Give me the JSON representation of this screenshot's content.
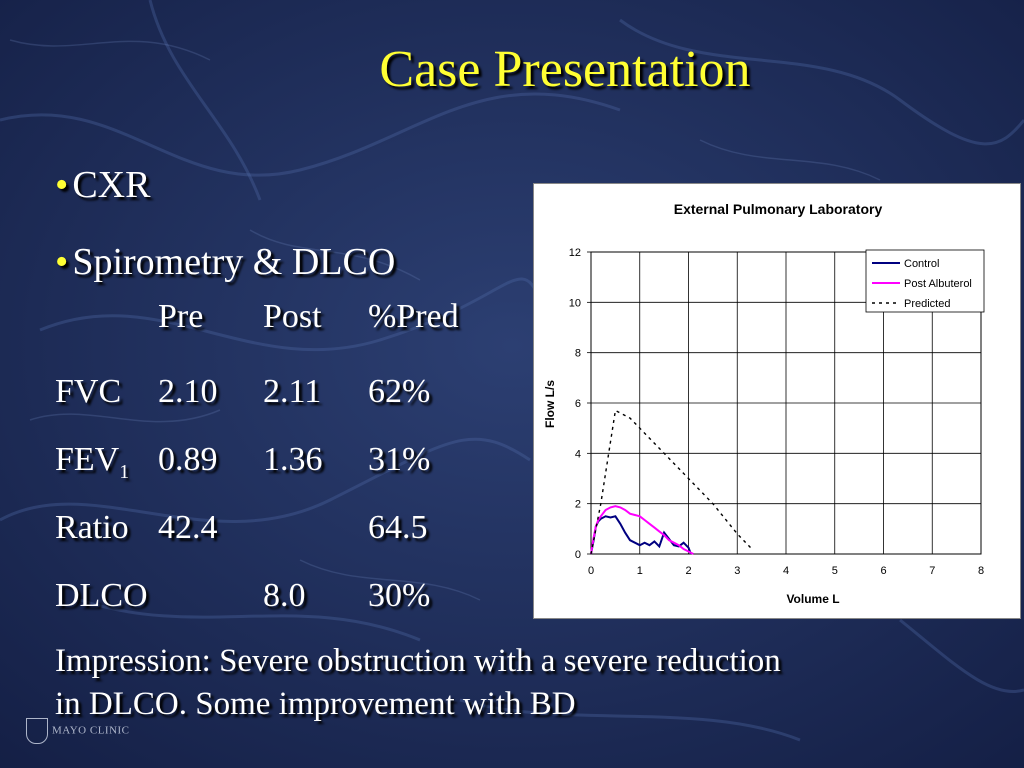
{
  "slide": {
    "title": "Case Presentation",
    "bullets": [
      "CXR",
      "Spirometry & DLCO"
    ],
    "table": {
      "headers": [
        "Pre",
        "Post",
        "%Pred"
      ],
      "rows": [
        {
          "label": "FVC",
          "sub": "",
          "pre": "2.10",
          "post": "2.11",
          "pred": "62%"
        },
        {
          "label": "FEV",
          "sub": "1",
          "pre": "0.89",
          "post": "1.36",
          "pred": "31%"
        },
        {
          "label": "Ratio",
          "sub": "",
          "pre": "42.4",
          "post": "",
          "pred": "64.5"
        },
        {
          "label": "DLCO",
          "sub": "",
          "pre": "",
          "post": "8.0",
          "pred": "30%"
        }
      ]
    },
    "impression_line1": "Impression: Severe obstruction with a severe reduction",
    "impression_line2": "in DLCO.  Some improvement with BD",
    "logo_text": "MAYO CLINIC",
    "colors": {
      "title": "#ffff33",
      "text": "#ffffff",
      "background": "#1b2a55"
    }
  },
  "chart_data": {
    "type": "line",
    "title": "External Pulmonary Laboratory",
    "xlabel": "Volume L",
    "ylabel": "Flow L/s",
    "xlim": [
      0,
      8
    ],
    "ylim": [
      0,
      12
    ],
    "xticks": [
      0,
      1,
      2,
      3,
      4,
      5,
      6,
      7,
      8
    ],
    "yticks": [
      0,
      2,
      4,
      6,
      8,
      10,
      12
    ],
    "grid": true,
    "legend_position": "top-right",
    "series": [
      {
        "name": "Control",
        "color": "#000080",
        "dash": "solid",
        "x": [
          0,
          0.05,
          0.1,
          0.15,
          0.2,
          0.3,
          0.4,
          0.5,
          0.6,
          0.7,
          0.8,
          0.9,
          1.0,
          1.1,
          1.2,
          1.3,
          1.4,
          1.5,
          1.6,
          1.7,
          1.8,
          1.9,
          2.0,
          2.05
        ],
        "y": [
          0,
          0.5,
          1.1,
          1.3,
          1.4,
          1.5,
          1.45,
          1.5,
          1.2,
          0.85,
          0.55,
          0.45,
          0.35,
          0.45,
          0.35,
          0.5,
          0.3,
          0.85,
          0.6,
          0.35,
          0.3,
          0.45,
          0.25,
          0
        ]
      },
      {
        "name": "Post Albuterol",
        "color": "#ff00ff",
        "dash": "solid",
        "x": [
          0,
          0.05,
          0.1,
          0.15,
          0.2,
          0.3,
          0.4,
          0.5,
          0.6,
          0.7,
          0.8,
          0.9,
          1.0,
          1.1,
          1.2,
          1.3,
          1.4,
          1.5,
          1.6,
          1.7,
          1.8,
          1.9,
          2.0,
          2.1
        ],
        "y": [
          0,
          0.6,
          1.1,
          1.35,
          1.5,
          1.75,
          1.85,
          1.9,
          1.85,
          1.75,
          1.6,
          1.55,
          1.5,
          1.35,
          1.2,
          1.05,
          0.9,
          0.75,
          0.55,
          0.45,
          0.35,
          0.2,
          0.1,
          0
        ]
      },
      {
        "name": "Predicted",
        "color": "#000000",
        "dash": "dotted",
        "x": [
          0,
          0.2,
          0.5,
          0.8,
          1.0,
          1.5,
          2.0,
          2.5,
          3.0,
          3.3
        ],
        "y": [
          0,
          2.0,
          5.7,
          5.4,
          5.0,
          4.0,
          3.0,
          2.0,
          0.8,
          0.2
        ]
      }
    ]
  }
}
